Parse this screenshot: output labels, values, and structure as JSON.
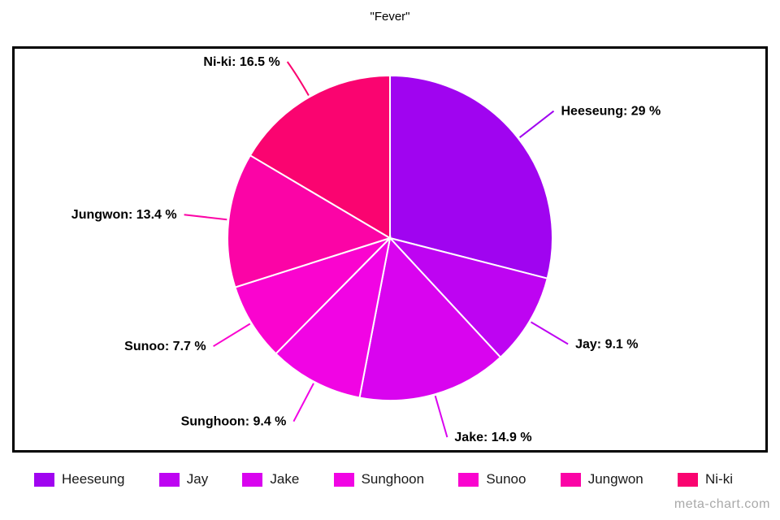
{
  "title": "\"Fever\"",
  "watermark": "meta-chart.com",
  "chart_data": {
    "type": "pie",
    "title": "\"Fever\"",
    "categories": [
      "Heeseung",
      "Jay",
      "Jake",
      "Sunghoon",
      "Sunoo",
      "Jungwon",
      "Ni-ki"
    ],
    "values": [
      29,
      9.1,
      14.9,
      9.4,
      7.7,
      13.4,
      16.5
    ],
    "colors": [
      "#A004F0",
      "#BE04F2",
      "#D904EF",
      "#F104E4",
      "#FA04CF",
      "#FB04A6",
      "#FA0470"
    ],
    "unit": "%",
    "label_format": "name: value %",
    "start_angle_deg": 0,
    "direction": "clockwise",
    "slice_border_color": "#FFFFFF",
    "legend_position": "bottom",
    "text_color": "#000000",
    "frame_border_color": "#000000",
    "watermark_color": "#A9A9A9"
  }
}
